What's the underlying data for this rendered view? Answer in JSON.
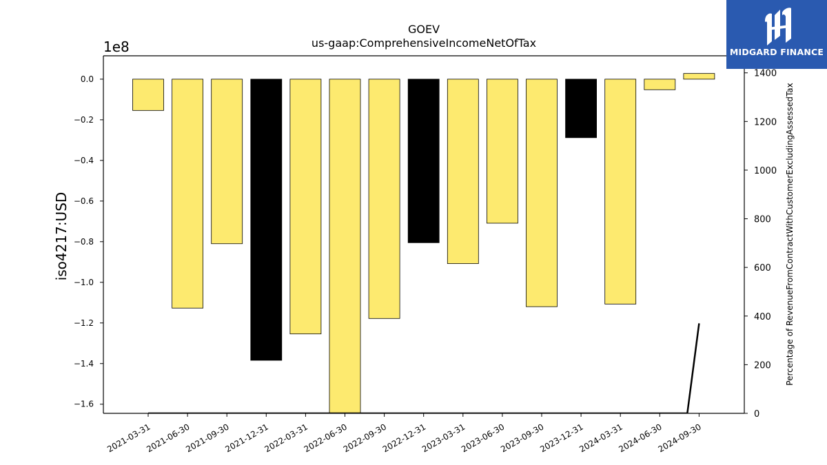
{
  "chart_data": {
    "type": "bar",
    "title": "GOEV",
    "subtitle": "us-gaap:ComprehensiveIncomeNetOfTax",
    "ylabel": "iso4217:USD",
    "y_offset_label": "1e8",
    "y2label": "Percentage of RevenueFromContractWithCustomerExcludingAssessedTax",
    "categories": [
      "2021-03-31",
      "2021-06-30",
      "2021-09-30",
      "2021-12-31",
      "2022-03-31",
      "2022-06-30",
      "2022-09-30",
      "2022-12-31",
      "2023-03-31",
      "2023-06-30",
      "2023-09-30",
      "2023-12-31",
      "2024-03-31",
      "2024-06-30",
      "2024-09-30"
    ],
    "values": [
      -15400000,
      -112700000,
      -81000000,
      -138400000,
      -125400000,
      -164500000,
      -117800000,
      -80500000,
      -90800000,
      -70900000,
      -112000000,
      -28800000,
      -110700000,
      -5200000,
      2800000
    ],
    "bar_colors": [
      "#fdea6f",
      "#fdea6f",
      "#fdea6f",
      "#000000",
      "#fdea6f",
      "#fdea6f",
      "#fdea6f",
      "#000000",
      "#fdea6f",
      "#fdea6f",
      "#fdea6f",
      "#000000",
      "#fdea6f",
      "#fdea6f",
      "#fdea6f"
    ],
    "ylim": [
      -164500000,
      11500000
    ],
    "yticks": [
      0,
      -0.2,
      -0.4,
      -0.6,
      -0.8,
      -1.0,
      -1.2,
      -1.4,
      -1.6
    ],
    "ytick_labels": [
      "0.0",
      "−0.2",
      "−0.4",
      "−0.6",
      "−0.8",
      "−1.0",
      "−1.2",
      "−1.4",
      "−1.6"
    ],
    "y2lim": [
      0,
      1470
    ],
    "y2ticks": [
      0,
      200,
      400,
      600,
      800,
      1000,
      1200,
      1400
    ],
    "secondary_series": {
      "type": "line",
      "color": "#000000",
      "x": [
        0,
        1,
        2,
        3,
        4,
        5,
        6,
        7,
        8,
        9,
        11.3,
        11.65,
        12,
        13.7,
        14
      ],
      "values": [
        0,
        0,
        0,
        0,
        0,
        0,
        0,
        0,
        0,
        0,
        0,
        0,
        0,
        0,
        370
      ]
    },
    "grid": false,
    "legend": "none"
  },
  "logo": {
    "text": "MIDGARD FINANCE"
  }
}
